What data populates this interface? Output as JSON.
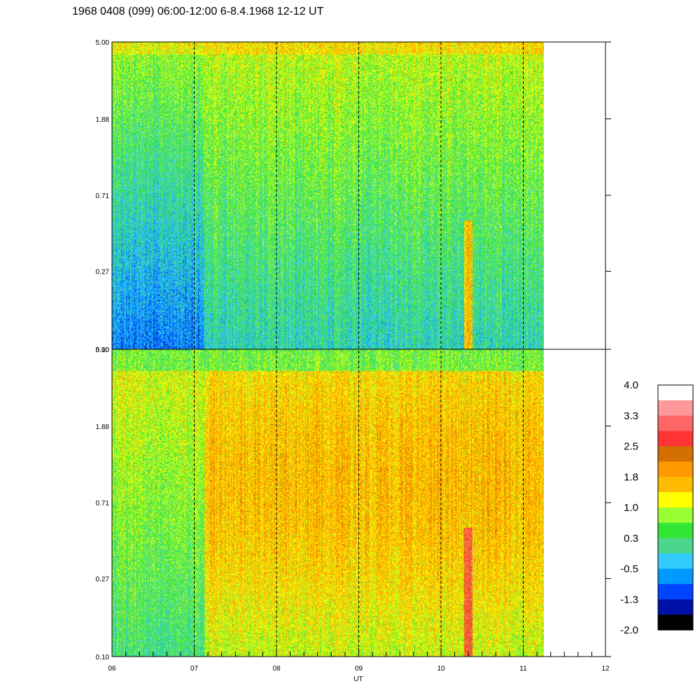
{
  "title": "1968 0408 (099) 06:00-12:00 6-8.4.1968  12-12 UT",
  "chart_data": {
    "type": "heatmap",
    "xlabel": "UT",
    "x_ticks": [
      "06",
      "07",
      "08",
      "09",
      "10",
      "11",
      "12"
    ],
    "x_range": [
      6,
      12
    ],
    "data_end_hour": 11.25,
    "y_scale": "log",
    "y_range": [
      0.1,
      5.0
    ],
    "y_ticks": [
      "0.10",
      "0.27",
      "0.71",
      "1.88",
      "5.00"
    ],
    "grid": "dashed vertical lines at each hour",
    "panels": [
      {
        "position": "top",
        "y_ticks": [
          "0.10",
          "0.27",
          "0.71",
          "1.88",
          "5.00"
        ]
      },
      {
        "position": "bottom",
        "y_ticks": [
          "0.10",
          "0.27",
          "0.71",
          "1.88",
          "5.00"
        ]
      }
    ],
    "colorbar": {
      "labels": [
        "4.0",
        "3.3",
        "2.5",
        "1.8",
        "1.0",
        "0.3",
        "-0.5",
        "-1.3",
        "-2.0"
      ],
      "colors": [
        "#ffffff",
        "#ff9999",
        "#ff6666",
        "#ff3333",
        "#d26f00",
        "#ff9900",
        "#ffbb00",
        "#ffff00",
        "#99ff33",
        "#33e633",
        "#4cd68c",
        "#33ccff",
        "#0099ff",
        "#0044ff",
        "#0011aa",
        "#000000"
      ]
    }
  }
}
